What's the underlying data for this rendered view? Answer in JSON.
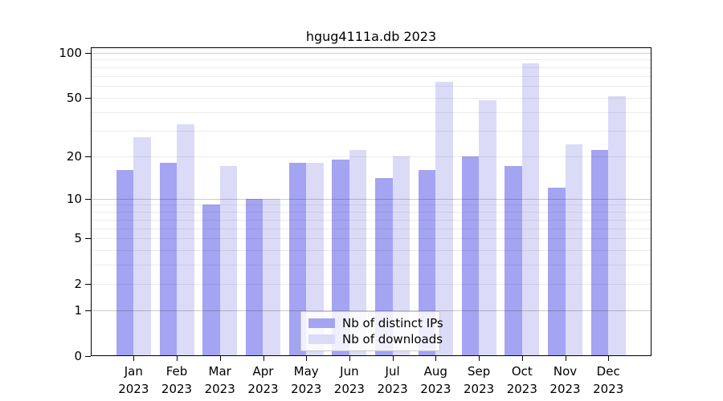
{
  "chart_data": {
    "type": "bar",
    "title": "hgug4111a.db 2023",
    "y_scale": "log10(value+1)",
    "x": [
      "Jan",
      "Feb",
      "Mar",
      "Apr",
      "May",
      "Jun",
      "Jul",
      "Aug",
      "Sep",
      "Oct",
      "Nov",
      "Dec"
    ],
    "x_year": "2023",
    "series": [
      {
        "name": "Nb of distinct IPs",
        "color": "#a4a4f2",
        "values": [
          16,
          18,
          9,
          10,
          18,
          19,
          14,
          16,
          20,
          17,
          12,
          22
        ]
      },
      {
        "name": "Nb of downloads",
        "color": "#dbdbf8",
        "values": [
          27,
          33,
          17,
          10,
          18,
          22,
          20,
          64,
          48,
          85,
          24,
          51
        ]
      }
    ],
    "y_ticks": [
      0,
      1,
      2,
      5,
      10,
      20,
      50,
      100
    ],
    "y_gridlines_major": [
      1,
      10,
      100
    ],
    "y_gridlines_minor": [
      2,
      3,
      4,
      5,
      6,
      7,
      8,
      9,
      20,
      30,
      40,
      50,
      60,
      70,
      80,
      90
    ],
    "ylim": [
      0,
      100
    ],
    "grid": true,
    "legend_position": "inside-bottom-center"
  },
  "colors": {
    "background": "#ffffff",
    "axis": "#000000",
    "series_ips": "#a4a4f2",
    "series_downloads": "#dbdbf8"
  }
}
